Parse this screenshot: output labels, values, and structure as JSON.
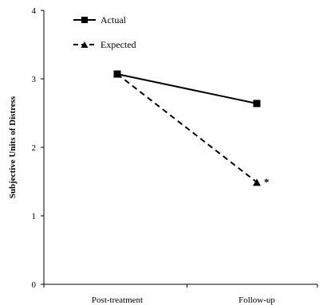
{
  "chart_data": {
    "type": "line",
    "title": "",
    "xlabel": "",
    "ylabel": "Subjective Units of Distress",
    "ylim": [
      0,
      4
    ],
    "yticks": [
      0,
      1,
      2,
      3,
      4
    ],
    "categories": [
      "Post-treatment",
      "Follow-up"
    ],
    "grid": false,
    "legend_position": "top-left",
    "series": [
      {
        "name": "Actual",
        "values": [
          3.07,
          2.64
        ],
        "marker": "square",
        "line_style": "solid",
        "color": "#000000"
      },
      {
        "name": "Expected",
        "values": [
          3.07,
          1.49
        ],
        "marker": "triangle",
        "line_style": "dashed",
        "color": "#000000"
      }
    ],
    "annotations": [
      {
        "text": "*",
        "series": "Expected",
        "category": "Follow-up"
      }
    ]
  }
}
